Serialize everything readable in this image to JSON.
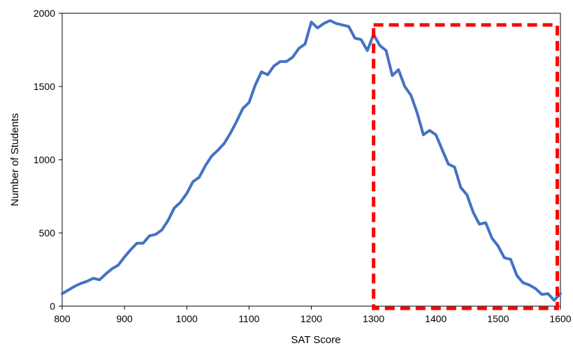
{
  "colors": {
    "line": "#4472C4",
    "highlight": "#FF0000",
    "axis": "#000000",
    "background": "#FFFFFF"
  },
  "chart_data": {
    "type": "line",
    "title": "",
    "xlabel": "SAT Score",
    "ylabel": "Number of Students",
    "xlim": [
      800,
      1600
    ],
    "ylim": [
      0,
      2000
    ],
    "x_ticks": [
      800,
      900,
      1000,
      1100,
      1200,
      1300,
      1400,
      1500,
      1600
    ],
    "y_ticks": [
      0,
      500,
      1000,
      1500,
      2000
    ],
    "grid": false,
    "legend": "none",
    "series": [
      {
        "x": [
          800,
          810,
          820,
          830,
          840,
          850,
          860,
          870,
          880,
          890,
          900,
          910,
          920,
          930,
          940,
          950,
          960,
          970,
          980,
          990,
          1000,
          1010,
          1020,
          1030,
          1040,
          1050,
          1060,
          1070,
          1080,
          1090,
          1100,
          1110,
          1120,
          1130,
          1140,
          1150,
          1160,
          1170,
          1180,
          1190,
          1200,
          1210,
          1220,
          1230,
          1240,
          1250,
          1260,
          1270,
          1280,
          1290,
          1300,
          1310,
          1320,
          1330,
          1340,
          1350,
          1360,
          1370,
          1380,
          1390,
          1400,
          1410,
          1420,
          1430,
          1440,
          1450,
          1460,
          1470,
          1480,
          1490,
          1500,
          1510,
          1520,
          1530,
          1540,
          1550,
          1560,
          1570,
          1580,
          1590,
          1600
        ],
        "values": [
          85,
          110,
          135,
          155,
          170,
          190,
          180,
          220,
          255,
          280,
          335,
          385,
          430,
          430,
          480,
          490,
          520,
          585,
          670,
          710,
          770,
          850,
          880,
          960,
          1025,
          1065,
          1110,
          1180,
          1260,
          1350,
          1390,
          1510,
          1600,
          1580,
          1640,
          1670,
          1670,
          1700,
          1760,
          1790,
          1940,
          1900,
          1930,
          1950,
          1930,
          1920,
          1910,
          1830,
          1820,
          1745,
          1855,
          1780,
          1745,
          1575,
          1615,
          1500,
          1440,
          1320,
          1170,
          1200,
          1170,
          1070,
          970,
          950,
          810,
          760,
          640,
          560,
          570,
          465,
          410,
          330,
          320,
          210,
          160,
          145,
          120,
          80,
          85,
          40,
          85
        ]
      }
    ],
    "annotations": [
      {
        "type": "dashed-rectangle",
        "x_range": [
          1300,
          1595
        ],
        "y_range": [
          -15,
          1920
        ]
      }
    ]
  }
}
